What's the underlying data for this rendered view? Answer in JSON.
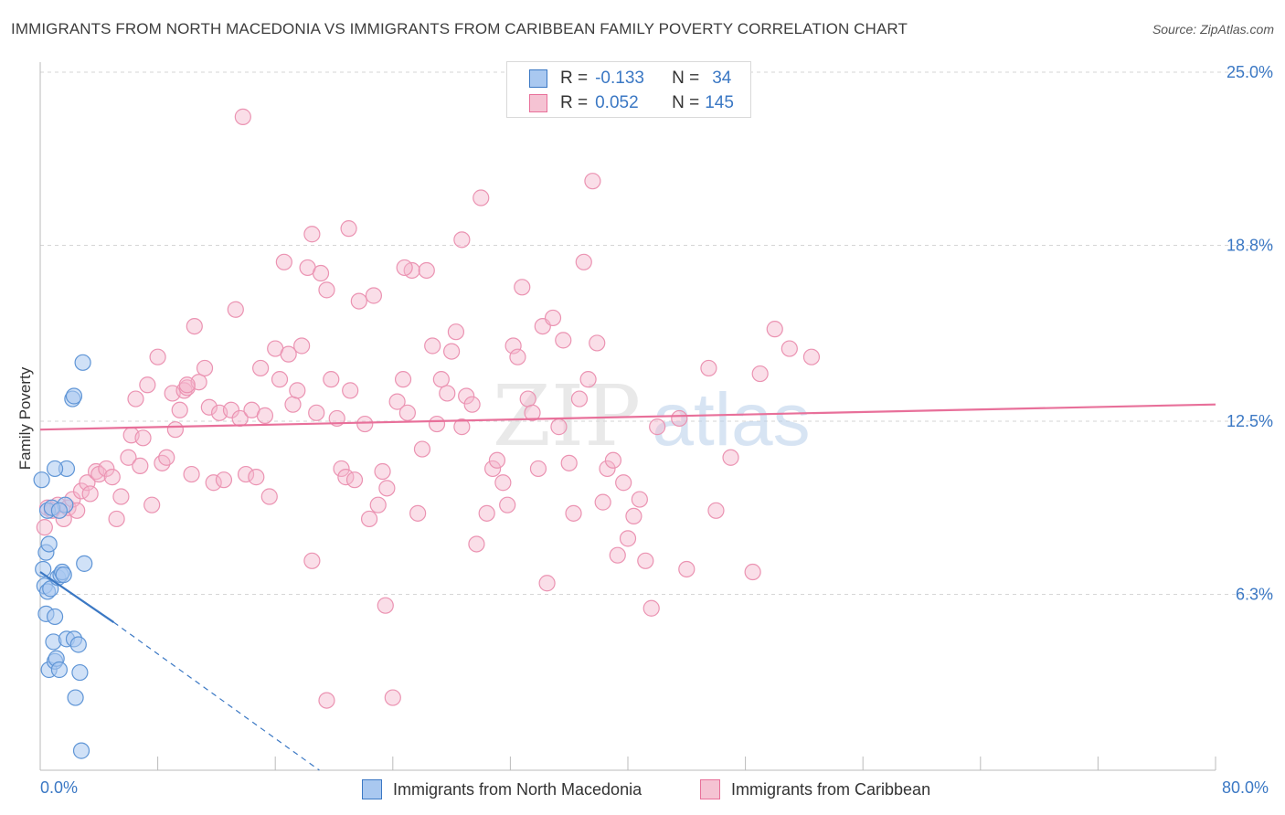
{
  "title": "IMMIGRANTS FROM NORTH MACEDONIA VS IMMIGRANTS FROM CARIBBEAN FAMILY POVERTY CORRELATION CHART",
  "source": "Source: ZipAtlas.com",
  "colors": {
    "blue": "#3b78c4",
    "blue_fill": "#a9c8f0",
    "pink": "#e8709a",
    "pink_fill": "#f5b6cb",
    "grid": "#d6d6d6",
    "axis_text": "#3b78c4"
  },
  "legend_top": {
    "rows": [
      {
        "r_label": "R =",
        "r_value": "-0.133",
        "n_label": "N =",
        "n_value": "34",
        "series": "blue"
      },
      {
        "r_label": "R =",
        "r_value": "0.052",
        "n_label": "N =",
        "n_value": "145",
        "series": "pink"
      }
    ]
  },
  "legend_bottom": {
    "items": [
      {
        "label": "Immigrants from North Macedonia",
        "series": "blue"
      },
      {
        "label": "Immigrants from Caribbean",
        "series": "pink"
      }
    ]
  },
  "chart_data": {
    "type": "scatter",
    "title": "IMMIGRANTS FROM NORTH MACEDONIA VS IMMIGRANTS FROM CARIBBEAN FAMILY POVERTY CORRELATION CHART",
    "xlabel": "",
    "ylabel": "Family Poverty",
    "xlim": [
      0,
      80
    ],
    "ylim": [
      0,
      25
    ],
    "x_tick_labels": [
      "0.0%",
      "80.0%"
    ],
    "y_ticks": [
      6.3,
      12.5,
      18.8,
      25.0
    ],
    "y_tick_labels": [
      "6.3%",
      "12.5%",
      "18.8%",
      "25.0%"
    ],
    "grid": true,
    "legend_position": "top-center",
    "series": [
      {
        "name": "Immigrants from North Macedonia",
        "color": "#3b78c4",
        "trend": {
          "x0": 0,
          "y0": 7.1,
          "x1": 5.0,
          "y1": 5.3,
          "dashed_to_x": 19.0,
          "dashed_to_y": 0.0
        },
        "points": [
          [
            0.1,
            10.4
          ],
          [
            0.5,
            9.3
          ],
          [
            0.4,
            7.8
          ],
          [
            0.2,
            7.2
          ],
          [
            0.6,
            8.1
          ],
          [
            0.3,
            6.6
          ],
          [
            0.5,
            6.4
          ],
          [
            0.7,
            6.5
          ],
          [
            0.4,
            5.6
          ],
          [
            0.9,
            4.6
          ],
          [
            0.6,
            3.6
          ],
          [
            1.0,
            3.9
          ],
          [
            1.1,
            4.0
          ],
          [
            1.3,
            3.6
          ],
          [
            1.0,
            5.5
          ],
          [
            1.2,
            6.9
          ],
          [
            1.4,
            7.0
          ],
          [
            1.5,
            7.1
          ],
          [
            1.6,
            7.0
          ],
          [
            1.8,
            4.7
          ],
          [
            2.3,
            4.7
          ],
          [
            2.6,
            4.5
          ],
          [
            2.7,
            3.5
          ],
          [
            2.4,
            2.6
          ],
          [
            2.8,
            0.7
          ],
          [
            3.0,
            7.4
          ],
          [
            2.2,
            13.3
          ],
          [
            2.3,
            13.4
          ],
          [
            2.9,
            14.6
          ],
          [
            1.8,
            10.8
          ],
          [
            1.0,
            10.8
          ],
          [
            1.7,
            9.5
          ],
          [
            0.8,
            9.4
          ],
          [
            1.3,
            9.3
          ]
        ]
      },
      {
        "name": "Immigrants from Caribbean",
        "color": "#e8709a",
        "trend": {
          "x0": 0,
          "y0": 12.2,
          "x1": 80,
          "y1": 13.1
        },
        "points": [
          [
            0.3,
            8.7
          ],
          [
            0.5,
            9.4
          ],
          [
            0.8,
            9.3
          ],
          [
            1.2,
            9.5
          ],
          [
            1.6,
            9.0
          ],
          [
            1.9,
            9.4
          ],
          [
            2.2,
            9.7
          ],
          [
            2.5,
            9.3
          ],
          [
            2.8,
            10.0
          ],
          [
            3.2,
            10.3
          ],
          [
            3.4,
            9.9
          ],
          [
            3.8,
            10.7
          ],
          [
            4.0,
            10.6
          ],
          [
            4.5,
            10.8
          ],
          [
            4.9,
            10.5
          ],
          [
            5.2,
            9.0
          ],
          [
            5.5,
            9.8
          ],
          [
            6.0,
            11.2
          ],
          [
            6.2,
            12.0
          ],
          [
            6.5,
            13.3
          ],
          [
            6.8,
            10.9
          ],
          [
            7.0,
            11.9
          ],
          [
            7.3,
            13.8
          ],
          [
            7.6,
            9.5
          ],
          [
            8.0,
            14.8
          ],
          [
            8.3,
            11.0
          ],
          [
            8.6,
            11.2
          ],
          [
            9.0,
            13.5
          ],
          [
            9.2,
            12.2
          ],
          [
            9.5,
            12.9
          ],
          [
            9.8,
            13.6
          ],
          [
            10.0,
            13.7
          ],
          [
            10.3,
            10.6
          ],
          [
            10.5,
            15.9
          ],
          [
            10.8,
            13.9
          ],
          [
            11.2,
            14.4
          ],
          [
            11.5,
            13.0
          ],
          [
            11.8,
            10.3
          ],
          [
            12.2,
            12.8
          ],
          [
            12.5,
            10.4
          ],
          [
            13.0,
            12.9
          ],
          [
            13.3,
            16.5
          ],
          [
            13.6,
            12.6
          ],
          [
            14.0,
            10.6
          ],
          [
            14.4,
            12.9
          ],
          [
            14.7,
            10.5
          ],
          [
            15.0,
            14.4
          ],
          [
            15.3,
            12.7
          ],
          [
            15.6,
            9.8
          ],
          [
            16.0,
            15.1
          ],
          [
            16.3,
            14.0
          ],
          [
            16.6,
            18.2
          ],
          [
            16.9,
            14.9
          ],
          [
            17.2,
            13.1
          ],
          [
            17.5,
            13.6
          ],
          [
            17.8,
            15.2
          ],
          [
            18.2,
            18.0
          ],
          [
            18.5,
            7.5
          ],
          [
            18.8,
            12.8
          ],
          [
            19.1,
            17.8
          ],
          [
            19.5,
            17.2
          ],
          [
            19.8,
            14.0
          ],
          [
            20.2,
            12.6
          ],
          [
            20.5,
            10.8
          ],
          [
            20.8,
            10.5
          ],
          [
            21.1,
            13.6
          ],
          [
            21.4,
            10.4
          ],
          [
            21.7,
            16.8
          ],
          [
            22.1,
            12.4
          ],
          [
            22.4,
            9.0
          ],
          [
            22.7,
            17.0
          ],
          [
            23.0,
            9.5
          ],
          [
            23.3,
            10.7
          ],
          [
            23.6,
            10.1
          ],
          [
            24.0,
            2.6
          ],
          [
            24.3,
            13.2
          ],
          [
            24.7,
            14.0
          ],
          [
            25.0,
            12.8
          ],
          [
            25.3,
            17.9
          ],
          [
            25.7,
            9.2
          ],
          [
            26.0,
            11.5
          ],
          [
            26.3,
            17.9
          ],
          [
            26.7,
            15.2
          ],
          [
            27.0,
            12.4
          ],
          [
            27.3,
            14.0
          ],
          [
            27.7,
            13.5
          ],
          [
            28.0,
            15.0
          ],
          [
            28.3,
            15.7
          ],
          [
            28.7,
            12.3
          ],
          [
            29.0,
            13.4
          ],
          [
            29.4,
            13.1
          ],
          [
            29.7,
            8.1
          ],
          [
            30.0,
            20.5
          ],
          [
            30.4,
            9.2
          ],
          [
            30.8,
            10.8
          ],
          [
            31.1,
            11.1
          ],
          [
            31.5,
            10.3
          ],
          [
            31.8,
            9.5
          ],
          [
            32.2,
            15.2
          ],
          [
            32.5,
            14.8
          ],
          [
            32.8,
            17.3
          ],
          [
            33.2,
            13.3
          ],
          [
            33.5,
            12.8
          ],
          [
            33.9,
            10.8
          ],
          [
            34.2,
            15.9
          ],
          [
            34.5,
            6.7
          ],
          [
            34.9,
            16.2
          ],
          [
            35.3,
            12.3
          ],
          [
            35.6,
            15.4
          ],
          [
            36.0,
            11.0
          ],
          [
            36.3,
            9.2
          ],
          [
            36.7,
            13.3
          ],
          [
            37.0,
            18.2
          ],
          [
            37.3,
            14.0
          ],
          [
            37.6,
            21.1
          ],
          [
            37.9,
            15.3
          ],
          [
            38.3,
            9.6
          ],
          [
            38.6,
            10.8
          ],
          [
            39.0,
            11.1
          ],
          [
            39.3,
            7.7
          ],
          [
            39.7,
            10.3
          ],
          [
            40.0,
            8.3
          ],
          [
            40.4,
            9.1
          ],
          [
            40.8,
            9.7
          ],
          [
            41.2,
            7.5
          ],
          [
            41.6,
            5.8
          ],
          [
            42.0,
            12.3
          ],
          [
            43.5,
            12.6
          ],
          [
            44.0,
            7.2
          ],
          [
            45.5,
            14.4
          ],
          [
            46.0,
            9.3
          ],
          [
            47.0,
            11.2
          ],
          [
            48.5,
            7.1
          ],
          [
            49.0,
            14.2
          ],
          [
            50.0,
            15.8
          ],
          [
            51.0,
            15.1
          ],
          [
            52.5,
            14.8
          ],
          [
            13.8,
            23.4
          ],
          [
            18.5,
            19.2
          ],
          [
            19.5,
            2.5
          ],
          [
            21.0,
            19.4
          ],
          [
            23.5,
            5.9
          ],
          [
            24.8,
            18.0
          ],
          [
            28.7,
            19.0
          ],
          [
            10.0,
            13.8
          ]
        ]
      }
    ]
  },
  "axis": {
    "ylabel": "Family Poverty",
    "x_left_label": "0.0%",
    "x_right_label": "80.0%",
    "y_labels": [
      "25.0%",
      "18.8%",
      "12.5%",
      "6.3%"
    ]
  },
  "watermark": {
    "zip": "ZIP",
    "atlas": "atlas"
  }
}
